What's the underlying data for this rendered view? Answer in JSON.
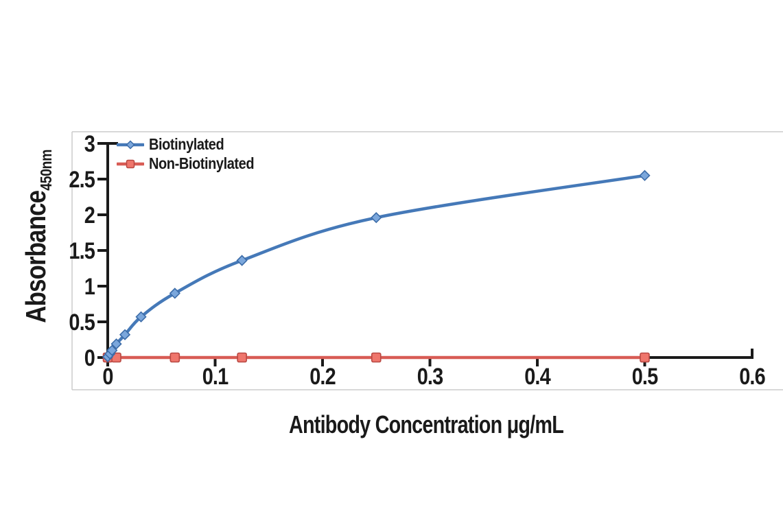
{
  "chart_data": {
    "type": "line",
    "title": "",
    "xlabel": "Antibody Concentration μg/mL",
    "ylabel": "Absorbance",
    "ylabel_subscript": "450nm",
    "xlim": [
      0,
      0.6
    ],
    "ylim": [
      0,
      3
    ],
    "x_ticks": [
      "0",
      "0.1",
      "0.2",
      "0.3",
      "0.4",
      "0.5",
      "0.6"
    ],
    "y_ticks": [
      "0",
      "0.5",
      "1",
      "1.5",
      "2",
      "2.5",
      "3"
    ],
    "grid": false,
    "legend_position": "top-left",
    "axis_color": "#1a1a1a",
    "frame_color": "#cbcbcb",
    "background": "#ffffff",
    "series": [
      {
        "name": "Biotinylated",
        "color": "#4579b8",
        "marker": "diamond",
        "marker_fill": "#7ba7dc",
        "marker_stroke": "#3c6ca8",
        "points": [
          [
            0,
            0.01
          ],
          [
            0.002,
            0.05
          ],
          [
            0.004,
            0.1
          ],
          [
            0.008,
            0.19
          ],
          [
            0.016,
            0.32
          ],
          [
            0.031,
            0.57
          ],
          [
            0.0625,
            0.9
          ],
          [
            0.125,
            1.36
          ],
          [
            0.25,
            1.96
          ],
          [
            0.5,
            2.55
          ]
        ]
      },
      {
        "name": "Non-Biotinylated",
        "color": "#d85c55",
        "marker": "square",
        "marker_fill": "#ef766c",
        "marker_stroke": "#b84842",
        "points": [
          [
            0,
            0
          ],
          [
            0.008,
            0
          ],
          [
            0.0625,
            0
          ],
          [
            0.125,
            0
          ],
          [
            0.25,
            0
          ],
          [
            0.5,
            0
          ]
        ]
      }
    ]
  }
}
